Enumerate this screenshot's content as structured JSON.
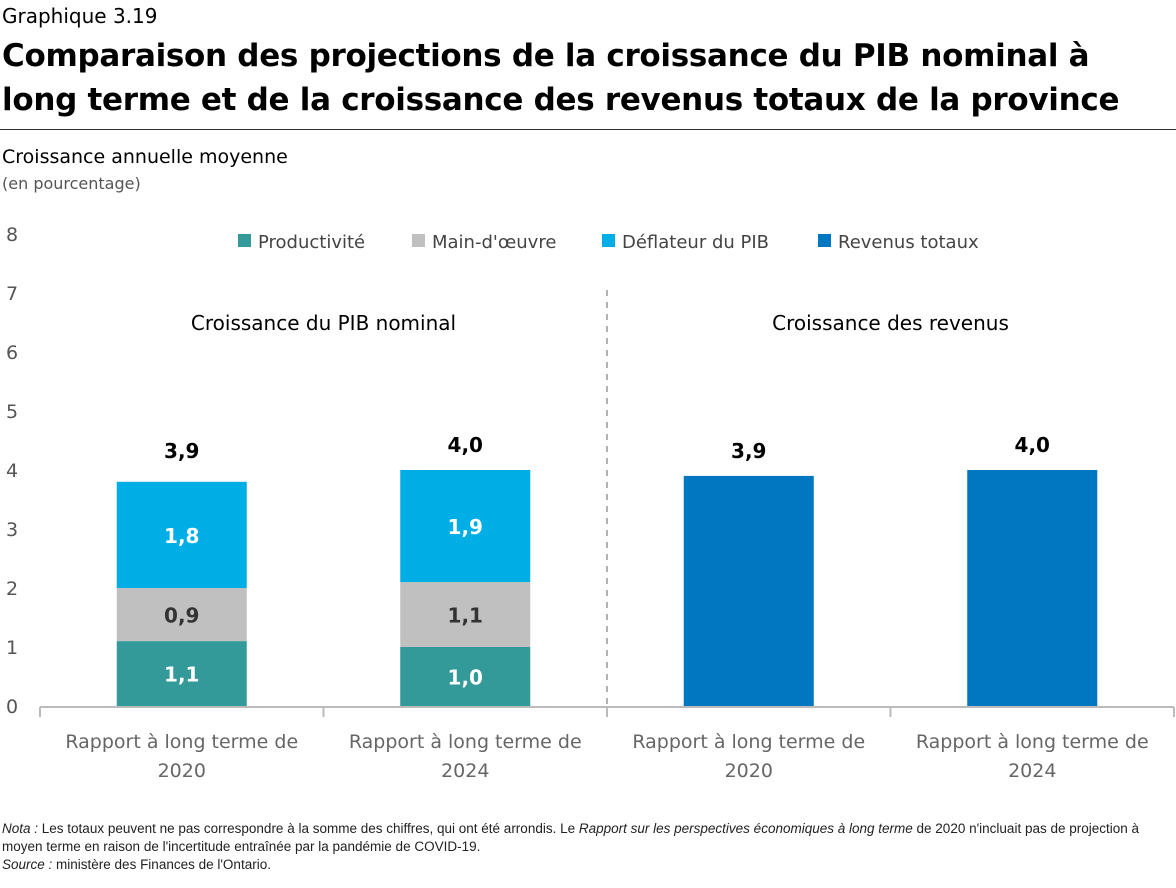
{
  "header": {
    "label": "Graphique 3.19",
    "title": "Comparaison des projections de la croissance du PIB nominal à long terme et de la croissance des revenus totaux de la province"
  },
  "axis": {
    "ylabel": "Croissance annuelle moyenne",
    "yunit": "(en pourcentage)"
  },
  "notes": {
    "nota_label": "Nota :",
    "nota_text_1": " Les totaux peuvent ne pas correspondre à la somme des chiffres, qui ont été arrondis. Le ",
    "nota_report": "Rapport sur les perspectives économiques à long terme",
    "nota_text_2": " de 2020 n'incluait pas de projection à moyen terme en raison de l'incertitude entraînée par la pandémie de COVID-19.",
    "source_label": "Source :",
    "source_text": " ministère des Finances de l'Ontario."
  },
  "chart_data": {
    "type": "bar",
    "stacked": true,
    "ylim": [
      0,
      8
    ],
    "yticks": [
      0,
      1,
      2,
      3,
      4,
      5,
      6,
      7,
      8
    ],
    "grid": false,
    "legend_position": "top",
    "categories": [
      "Rapport à long terme de 2020",
      "Rapport à long terme de 2024",
      "Rapport à long terme de 2020",
      "Rapport à long terme de 2024"
    ],
    "category_lines": [
      [
        "Rapport à long terme de",
        "2020"
      ],
      [
        "Rapport à long terme de",
        "2024"
      ],
      [
        "Rapport à long terme de",
        "2020"
      ],
      [
        "Rapport à long terme de",
        "2024"
      ]
    ],
    "panels": [
      {
        "title": "Croissance du PIB nominal",
        "categories": [
          0,
          1
        ]
      },
      {
        "title": "Croissance des revenus",
        "categories": [
          2,
          3
        ]
      }
    ],
    "series": [
      {
        "name": "Productivité",
        "color": "#339999",
        "values": [
          1.1,
          1.0,
          null,
          null
        ],
        "labels": [
          "1,1",
          "1,0",
          null,
          null
        ],
        "label_color": "#ffffff"
      },
      {
        "name": "Main-d'œuvre",
        "color": "#c0c0c0",
        "values": [
          0.9,
          1.1,
          null,
          null
        ],
        "labels": [
          "0,9",
          "1,1",
          null,
          null
        ],
        "label_color": "#333333"
      },
      {
        "name": "Déflateur du PIB",
        "color": "#00aee6",
        "values": [
          1.8,
          1.9,
          null,
          null
        ],
        "labels": [
          "1,8",
          "1,9",
          null,
          null
        ],
        "label_color": "#ffffff"
      },
      {
        "name": "Revenus totaux",
        "color": "#0077c0",
        "values": [
          null,
          null,
          3.9,
          4.0
        ],
        "labels": [
          null,
          null,
          null,
          null
        ],
        "label_color": "#ffffff"
      }
    ],
    "totals": [
      3.9,
      4.0,
      3.9,
      4.0
    ],
    "total_labels": [
      "3,9",
      "4,0",
      "3,9",
      "4,0"
    ]
  }
}
